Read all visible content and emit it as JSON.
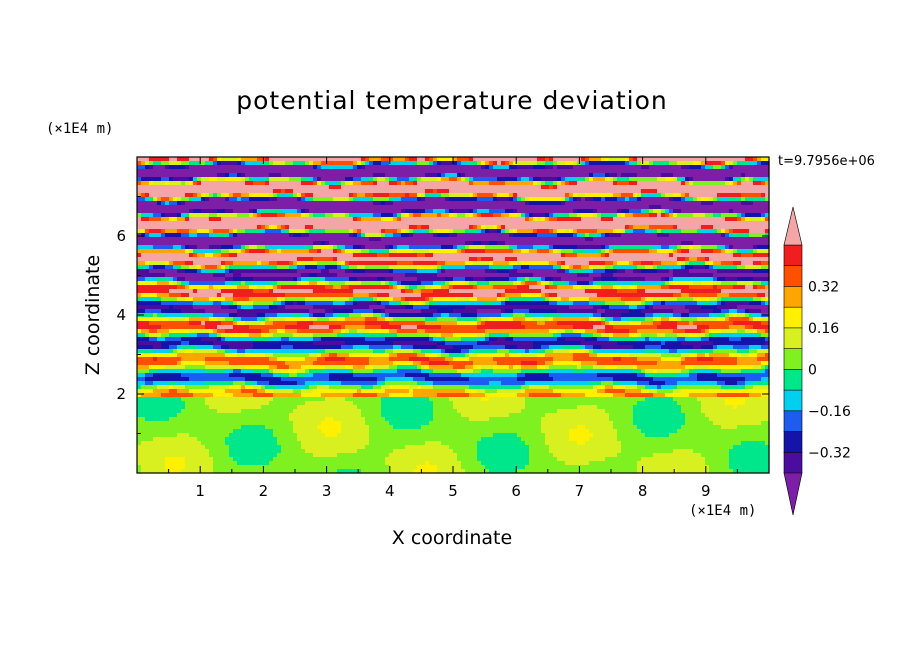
{
  "chart_data": {
    "type": "heatmap",
    "title": "potential temperature deviation",
    "xlabel": "X coordinate",
    "ylabel": "Z coordinate",
    "x_unit": "(×1E4 m)",
    "y_unit": "(×1E4 m)",
    "time_label": "t=9.7956e+06",
    "xlim": [
      0,
      10
    ],
    "ylim": [
      0,
      8
    ],
    "x_ticks": [
      "1",
      "2",
      "3",
      "4",
      "5",
      "6",
      "7",
      "8",
      "9"
    ],
    "y_ticks": [
      "2",
      "4",
      "6"
    ],
    "colorbar": {
      "levels": [
        -0.48,
        -0.4,
        -0.32,
        -0.24,
        -0.16,
        -0.08,
        0,
        0.08,
        0.16,
        0.24,
        0.32,
        0.4,
        0.48
      ],
      "tick_labels": [
        "0.32",
        "0.16",
        "0",
        "−0.16",
        "−0.32"
      ],
      "colors": [
        "#7d1ea6",
        "#4b0d9e",
        "#1414a8",
        "#1c5cf0",
        "#00d0f0",
        "#00e68a",
        "#7ff020",
        "#d8f020",
        "#fff000",
        "#ffa500",
        "#ff5000",
        "#f01e1e",
        "#f4a6a6"
      ],
      "extend": "both"
    },
    "description_layers": [
      {
        "z_range": [
          0,
          1.9
        ],
        "dominant": "near-zero (green / light green)"
      },
      {
        "z_range": [
          1.9,
          5.8
        ],
        "dominant": "alternating bands of all levels"
      },
      {
        "z_range": [
          5.8,
          8
        ],
        "dominant": "extremes (purple / pink)"
      }
    ]
  }
}
